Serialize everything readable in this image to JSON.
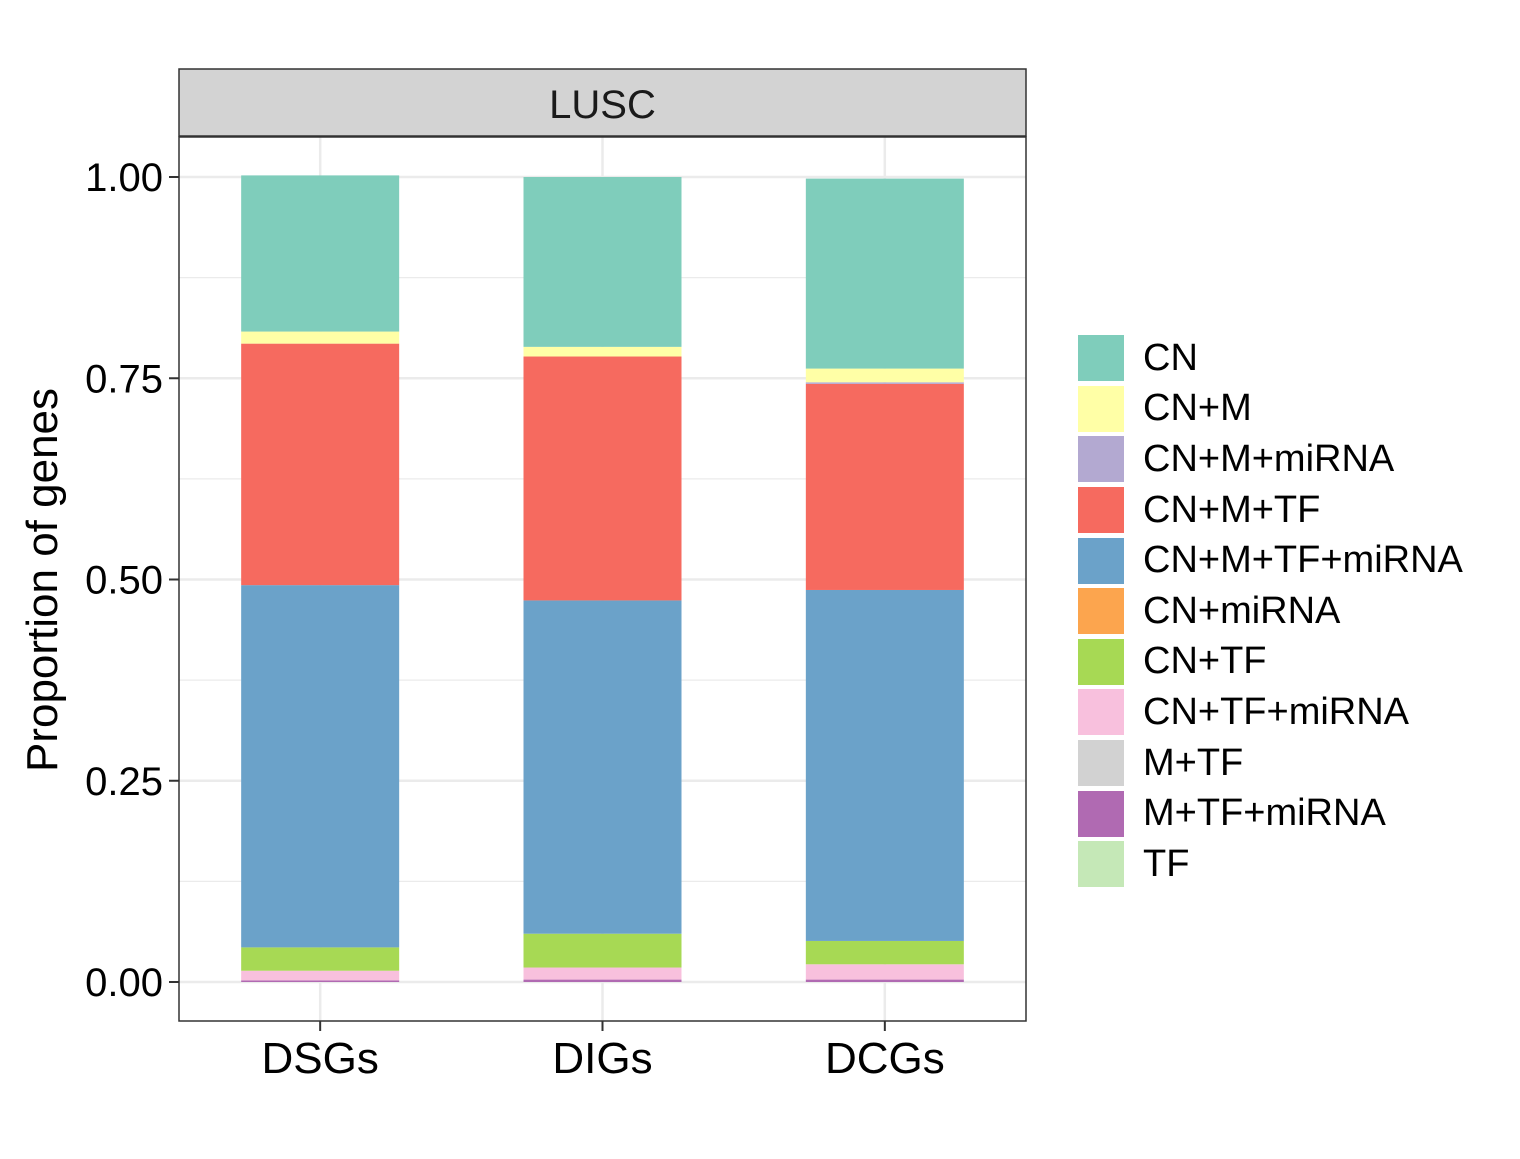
{
  "chart_data": {
    "type": "bar",
    "stacked": true,
    "panel_title": "LUSC",
    "xlabel": "",
    "ylabel": "Proportion of genes",
    "ylim": [
      -0.05,
      1.05
    ],
    "y_ticks": [
      "0.00",
      "0.25",
      "0.50",
      "0.75",
      "1.00"
    ],
    "categories": [
      "DSGs",
      "DIGs",
      "DCGs"
    ],
    "series": [
      {
        "name": "CN",
        "color": "#7FCDBB",
        "values": [
          0.194,
          0.211,
          0.236
        ]
      },
      {
        "name": "CN+M",
        "color": "#FFFFA6",
        "values": [
          0.015,
          0.012,
          0.017
        ]
      },
      {
        "name": "CN+M+miRNA",
        "color": "#B3A9D1",
        "values": [
          0.0,
          0.0,
          0.002
        ]
      },
      {
        "name": "CN+M+TF",
        "color": "#F66A5F",
        "values": [
          0.3,
          0.303,
          0.256
        ]
      },
      {
        "name": "CN+M+TF+miRNA",
        "color": "#6BA2C9",
        "values": [
          0.45,
          0.414,
          0.436
        ]
      },
      {
        "name": "CN+miRNA",
        "color": "#FCA54E",
        "values": [
          0.0,
          0.0,
          0.0
        ]
      },
      {
        "name": "CN+TF",
        "color": "#A7D954",
        "values": [
          0.029,
          0.042,
          0.029
        ]
      },
      {
        "name": "CN+TF+miRNA",
        "color": "#F8C0DD",
        "values": [
          0.012,
          0.015,
          0.019
        ]
      },
      {
        "name": "M+TF",
        "color": "#D2D2D2",
        "values": [
          0.0,
          0.0,
          0.0
        ]
      },
      {
        "name": "M+TF+miRNA",
        "color": "#B06AB2",
        "values": [
          0.002,
          0.003,
          0.003
        ]
      },
      {
        "name": "TF",
        "color": "#C5E8B7",
        "values": [
          0.0,
          0.0,
          0.0
        ]
      }
    ],
    "grid": true,
    "legend_position": "right"
  }
}
